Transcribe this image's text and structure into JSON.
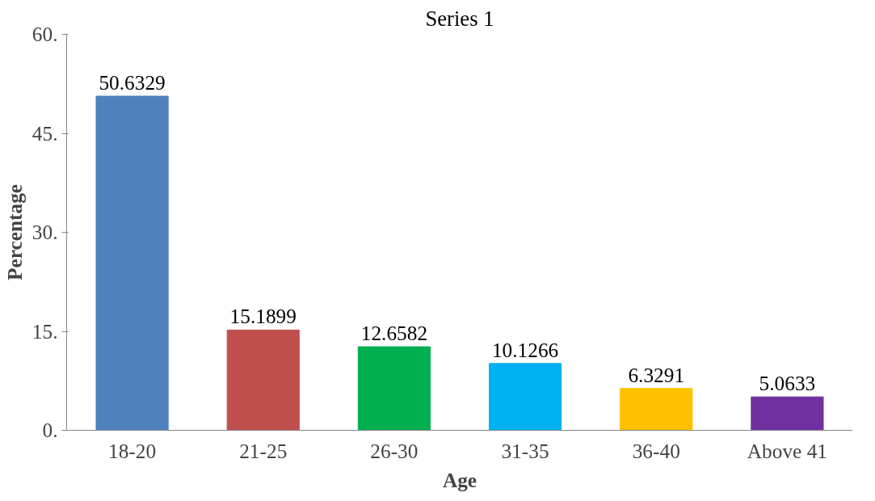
{
  "chart_data": {
    "type": "bar",
    "title": "Series 1",
    "xlabel": "Age",
    "ylabel": "Percentage",
    "categories": [
      "18-20",
      "21-25",
      "26-30",
      "31-35",
      "36-40",
      "Above 41"
    ],
    "values": [
      50.6329,
      15.1899,
      12.6582,
      10.1266,
      6.3291,
      5.0633
    ],
    "colors": [
      "#4f81bd",
      "#c0504d",
      "#00b050",
      "#00b0f0",
      "#ffc000",
      "#7030a0"
    ],
    "ylim": [
      0,
      60
    ],
    "yticks": [
      {
        "value": 0,
        "label": "0."
      },
      {
        "value": 15,
        "label": "15."
      },
      {
        "value": 30,
        "label": "30."
      },
      {
        "value": 45,
        "label": "45."
      },
      {
        "value": 60,
        "label": "60."
      }
    ],
    "data_labels": true,
    "grid": false
  }
}
